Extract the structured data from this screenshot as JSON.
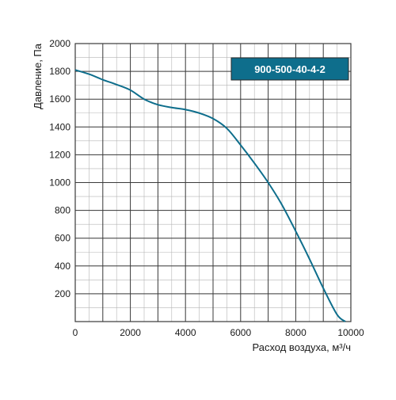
{
  "chart_data": {
    "type": "line",
    "title": "",
    "xlabel": "Расход воздуха, м³/ч",
    "ylabel": "Давление, Па",
    "xlim": [
      0,
      10000
    ],
    "ylim": [
      0,
      2000
    ],
    "x_ticks": [
      0,
      2000,
      4000,
      6000,
      8000,
      10000
    ],
    "y_ticks": [
      200,
      400,
      600,
      800,
      1000,
      1200,
      1400,
      1600,
      1800,
      2000
    ],
    "x_minor_step": 500,
    "y_minor_step": 100,
    "grid": true,
    "legend": "top-right",
    "series": [
      {
        "name": "900-500-40-4-2",
        "color": "#0e6e8c",
        "x": [
          0,
          500,
          1000,
          1500,
          2000,
          2500,
          3000,
          3500,
          4000,
          4500,
          5000,
          5500,
          6000,
          6500,
          7000,
          7500,
          8000,
          8500,
          9000,
          9500,
          9800
        ],
        "y": [
          1810,
          1780,
          1740,
          1705,
          1665,
          1600,
          1560,
          1540,
          1525,
          1500,
          1460,
          1390,
          1270,
          1140,
          1000,
          840,
          650,
          450,
          240,
          50,
          0
        ]
      }
    ]
  },
  "colors": {
    "line": "#0e6e8c",
    "legend_bg": "#0e6e8c",
    "legend_text": "#ffffff",
    "major_grid": "#3a3a3a",
    "minor_grid": "#b4b4b4"
  }
}
